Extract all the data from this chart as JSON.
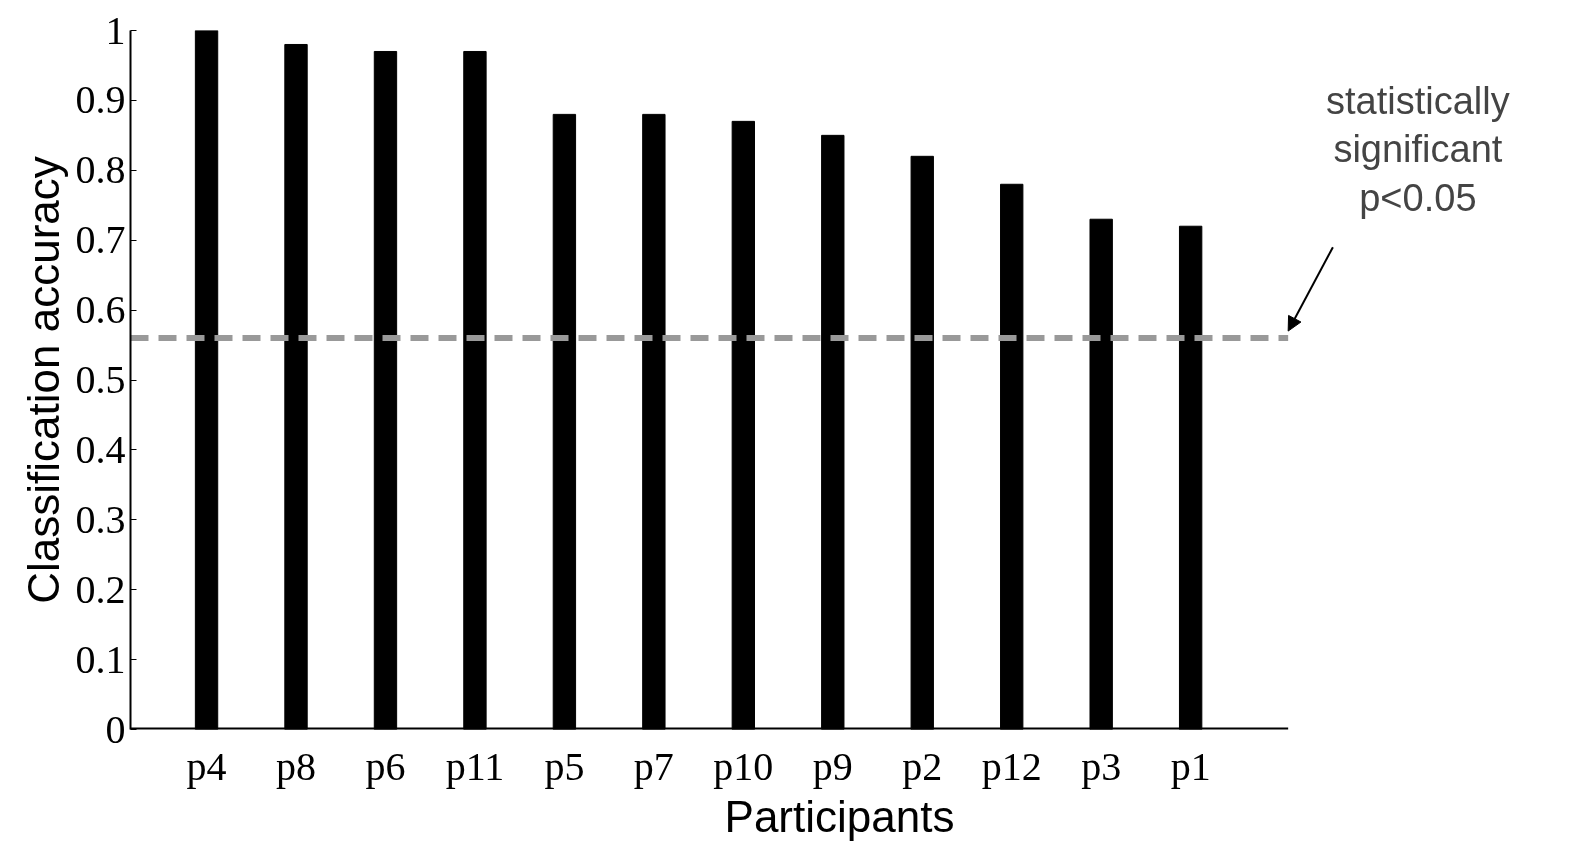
{
  "chart_data": {
    "type": "bar",
    "xlabel": "Participants",
    "ylabel": "Classification accuracy",
    "categories": [
      "p4",
      "p8",
      "p6",
      "p11",
      "p5",
      "p7",
      "p10",
      "p9",
      "p2",
      "p12",
      "p3",
      "p1"
    ],
    "series": [
      {
        "color": "#000000",
        "values": [
          1.0,
          0.98,
          0.97,
          0.97,
          0.88,
          0.88,
          0.87,
          0.85,
          0.82,
          0.78,
          0.73,
          0.72
        ]
      }
    ],
    "ylim": [
      0,
      1
    ],
    "yticks": [
      0,
      0.1,
      0.2,
      0.3,
      0.4,
      0.5,
      0.6,
      0.7,
      0.8,
      0.9,
      1
    ],
    "ref_lines": [
      {
        "axis": "y",
        "value": 0.56,
        "label": "statistically\nsignificant\np<0.05",
        "color": "#999999",
        "line_style": "dashed"
      }
    ],
    "grid": false
  }
}
